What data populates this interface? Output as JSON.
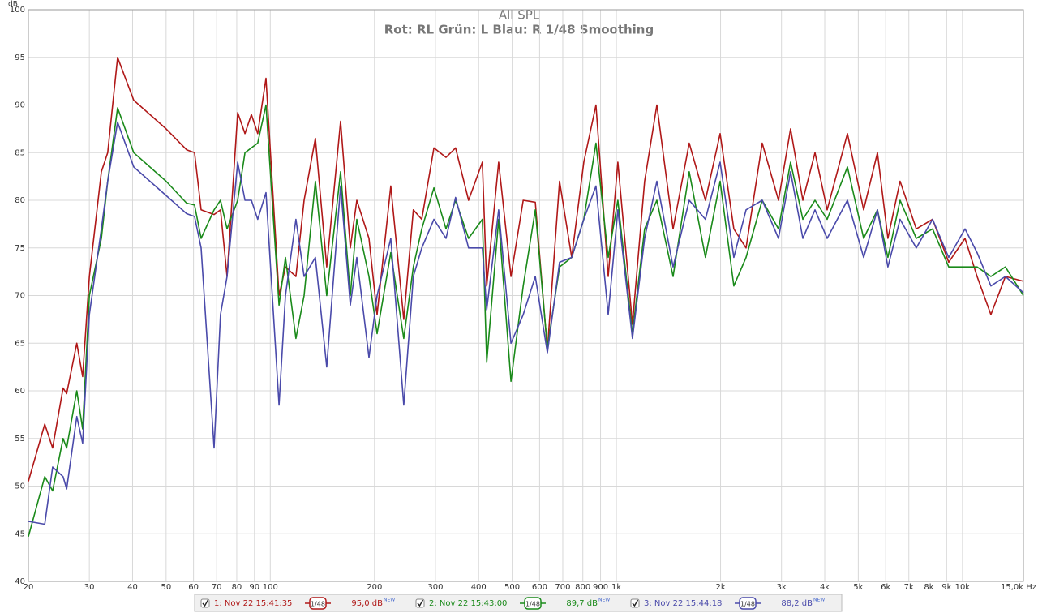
{
  "chart_data": {
    "type": "line",
    "title": "All SPL",
    "subtitle": "Rot: RL Grün: L Blau: R 1/48 Smoothing",
    "y_label": "dB",
    "x_scale": "log",
    "grid": true,
    "xlim": [
      20,
      15000
    ],
    "ylim": [
      40,
      100
    ],
    "yticks": [
      40,
      45,
      50,
      55,
      60,
      65,
      70,
      75,
      80,
      85,
      90,
      95,
      100
    ],
    "xticks": [
      20,
      30,
      40,
      50,
      60,
      70,
      80,
      90,
      100,
      200,
      300,
      400,
      500,
      600,
      700,
      800,
      900,
      {
        "value": 1000,
        "label": "1k"
      },
      {
        "value": 2000,
        "label": "2k"
      },
      {
        "value": 3000,
        "label": "3k"
      },
      {
        "value": 4000,
        "label": "4k"
      },
      {
        "value": 5000,
        "label": "5k"
      },
      {
        "value": 6000,
        "label": "6k"
      },
      {
        "value": 7000,
        "label": "7k"
      },
      {
        "value": 8000,
        "label": "8k"
      },
      {
        "value": 9000,
        "label": "9k"
      },
      {
        "value": 10000,
        "label": "10k"
      },
      {
        "value": 15000,
        "label": "15,0k Hz"
      }
    ],
    "x": [
      20,
      22.3,
      23.5,
      25.2,
      25.8,
      27.6,
      28.7,
      30,
      32.5,
      33.9,
      36.2,
      40.3,
      50,
      57.3,
      60.4,
      63.1,
      68.8,
      71.8,
      75,
      80.5,
      84.5,
      88.2,
      92,
      97.2,
      106,
      110.6,
      118.6,
      125.2,
      135,
      145.6,
      159.6,
      170.3,
      177.8,
      192.8,
      203.5,
      223,
      243,
      259,
      274,
      297,
      322,
      343,
      374,
      410,
      422,
      457,
      496,
      538,
      583,
      632,
      685,
      743,
      805,
      873,
      947,
      1010,
      1113,
      1207,
      1309,
      1458,
      1624,
      1809,
      1994,
      2185,
      2370,
      2639,
      2940,
      3187,
      3457,
      3748,
      4064,
      4651,
      5182,
      5680,
      6090,
      6604,
      7356,
      8195,
      9128,
      10170,
      11024,
      12083,
      13310,
      15000
    ],
    "series": [
      {
        "name": "1: Nov 22 15:41:35",
        "color": "#b01818",
        "smoothing": "1/48",
        "level": "95,0 dB",
        "badge": "NEW",
        "values": [
          50.5,
          56.5,
          54,
          60.3,
          59.7,
          65,
          61.5,
          72,
          83,
          85,
          95,
          90.5,
          87.5,
          85.3,
          85,
          79,
          78.5,
          79,
          72,
          89.2,
          87,
          89,
          87,
          92.8,
          70,
          73,
          72,
          80,
          86.5,
          73,
          88.3,
          75,
          80,
          76,
          68,
          81.5,
          67.5,
          79,
          78,
          85.5,
          84.5,
          85.5,
          80,
          84,
          71,
          84,
          72,
          80,
          79.8,
          64.3,
          82,
          74,
          84,
          90,
          72,
          84,
          67,
          82,
          90,
          77,
          86,
          80,
          87,
          77,
          75,
          86,
          80,
          87.5,
          80,
          85,
          79,
          87,
          79,
          85,
          76,
          82,
          77,
          78,
          73.5,
          76,
          72,
          68,
          72,
          71.5
        ]
      },
      {
        "name": "2: Nov 22 15:43:00",
        "color": "#1a8a1a",
        "smoothing": "1/48",
        "level": "89,7 dB",
        "badge": "NEW",
        "values": [
          44.7,
          51,
          49.5,
          55,
          54,
          60,
          56,
          70,
          76,
          82,
          89.7,
          85,
          82,
          79.7,
          79.5,
          76,
          79,
          80,
          77,
          80,
          85,
          85.5,
          86,
          90,
          69,
          74,
          65.5,
          70,
          82,
          70,
          83,
          70,
          78,
          72,
          66,
          74.5,
          65.5,
          73,
          77,
          81.3,
          77,
          80,
          76,
          78,
          63,
          78,
          61,
          71,
          79,
          64.5,
          73,
          74,
          78,
          86,
          74,
          80,
          66,
          77,
          80,
          72,
          83,
          74,
          82,
          71,
          74,
          80,
          77,
          84,
          78,
          80,
          78,
          83.5,
          76,
          79,
          74,
          80,
          76,
          77,
          73,
          73,
          73,
          72,
          73,
          70
        ]
      },
      {
        "name": "3: Nov 22 15:44:18",
        "color": "#4a4aaa",
        "smoothing": "1/48",
        "level": "88,2 dB",
        "badge": "NEW",
        "values": [
          46.3,
          46,
          52,
          51,
          49.7,
          57.3,
          54.5,
          68,
          77,
          82,
          88.2,
          83.5,
          80.5,
          78.6,
          78.3,
          75,
          54,
          68,
          72,
          84,
          80,
          80,
          78,
          80.8,
          58.5,
          70,
          78,
          72,
          74,
          62.5,
          81.5,
          69,
          74,
          63.5,
          70,
          76,
          58.5,
          72,
          75,
          78,
          76,
          80.3,
          75,
          75,
          68.5,
          79,
          65,
          68,
          72,
          64,
          73.5,
          74,
          78,
          81.5,
          68,
          79,
          65.5,
          76,
          82,
          73,
          80,
          78,
          84,
          74,
          79,
          80,
          76,
          83,
          76,
          79,
          76,
          80,
          74,
          79,
          73,
          78,
          75,
          78,
          74,
          77,
          74.5,
          71,
          72,
          70.3
        ]
      }
    ]
  }
}
